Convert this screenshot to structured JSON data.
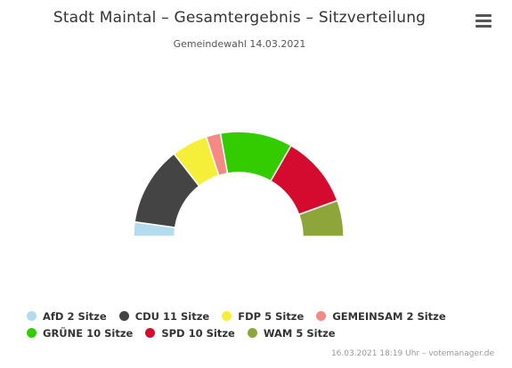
{
  "header": {
    "title": "Stadt Maintal – Gesamtergebnis – Sitzverteilung",
    "subtitle": "Gemeindewahl 14.03.2021"
  },
  "menu_icon": "hamburger-menu-icon",
  "chart_data": {
    "type": "pie",
    "variant": "parliament-semicircle",
    "title": "Stadt Maintal – Gesamtergebnis – Sitzverteilung",
    "subtitle": "Gemeindewahl 14.03.2021",
    "total_seats": 45,
    "series": [
      {
        "name": "AfD",
        "value": 2,
        "color": "#b3dcee"
      },
      {
        "name": "CDU",
        "value": 11,
        "color": "#444444"
      },
      {
        "name": "FDP",
        "value": 5,
        "color": "#f5ef3a"
      },
      {
        "name": "GEMEINSAM",
        "value": 2,
        "color": "#f58a84"
      },
      {
        "name": "GRÜNE",
        "value": 10,
        "color": "#33cc00"
      },
      {
        "name": "SPD",
        "value": 10,
        "color": "#d50a2f"
      },
      {
        "name": "WAM",
        "value": 5,
        "color": "#8ea53a"
      }
    ],
    "legend": {
      "placement": "bottom",
      "items": [
        [
          "AfD 2 Sitze",
          "CDU 11 Sitze",
          "FDP 5 Sitze",
          "GEMEINSAM 2 Sitze"
        ],
        [
          "GRÜNE 10 Sitze",
          "SPD 10 Sitze",
          "WAM 5 Sitze"
        ]
      ]
    }
  },
  "credit": "16.03.2021 18:19 Uhr – votemanager.de"
}
